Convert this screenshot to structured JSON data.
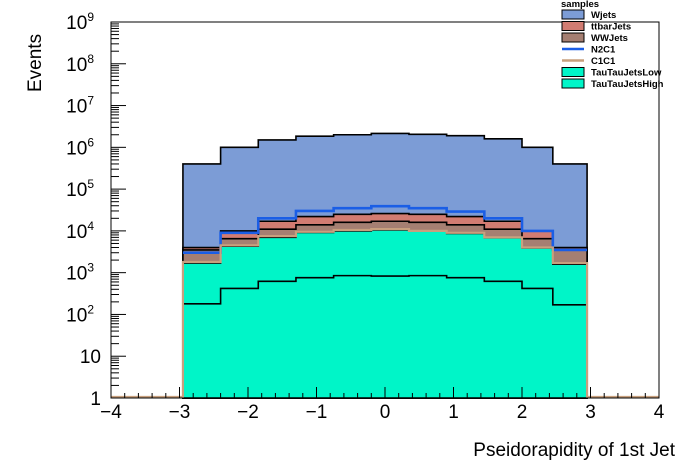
{
  "chart_data": {
    "type": "stacked-histogram",
    "xlabel": "Pseidorapidity of 1st Jet",
    "ylabel": "Events",
    "xlim": [
      -4,
      4
    ],
    "ylim": [
      1,
      1000000000
    ],
    "yscale": "log",
    "x_ticks": [
      "−4",
      "−3",
      "−2",
      "−1",
      "0",
      "1",
      "2",
      "3",
      "4"
    ],
    "y_ticks": [
      {
        "base": "1",
        "exp": ""
      },
      {
        "base": "10",
        "exp": ""
      },
      {
        "base": "10",
        "exp": "2"
      },
      {
        "base": "10",
        "exp": "3"
      },
      {
        "base": "10",
        "exp": "4"
      },
      {
        "base": "10",
        "exp": "5"
      },
      {
        "base": "10",
        "exp": "6"
      },
      {
        "base": "10",
        "exp": "7"
      },
      {
        "base": "10",
        "exp": "8"
      },
      {
        "base": "10",
        "exp": "9"
      }
    ],
    "bin_edges": [
      -2.95,
      -2.4,
      -1.85,
      -1.3,
      -0.75,
      -0.2,
      0.35,
      0.9,
      1.45,
      2.0,
      2.45,
      2.95
    ],
    "legend": {
      "title": "samples",
      "position": "top-right"
    },
    "series": [
      {
        "name": "Wjets",
        "style": "fill",
        "color": "#7c9cd6",
        "values": [
          400000,
          1000000,
          1500000,
          1850000,
          2000000,
          2150000,
          2050000,
          1900000,
          1600000,
          1000000,
          400000
        ]
      },
      {
        "name": "ttbarJets",
        "style": "fill",
        "color": "#d27c72",
        "values": [
          4000,
          10000,
          17000,
          22000,
          25000,
          26000,
          25000,
          22000,
          17000,
          10000,
          4000
        ]
      },
      {
        "name": "WWJets",
        "style": "fill",
        "color": "#a57f72",
        "values": [
          3500,
          6500,
          11000,
          14000,
          16000,
          17000,
          16000,
          14000,
          11000,
          6500,
          3500
        ]
      },
      {
        "name": "N2C1",
        "style": "line",
        "color": "#1a5ee6",
        "values": [
          3000,
          9000,
          20000,
          30000,
          35000,
          39000,
          35000,
          29000,
          20000,
          10000,
          3500
        ]
      },
      {
        "name": "C1C1",
        "style": "line",
        "color": "#c8a07e",
        "values": [
          1800,
          4500,
          7500,
          9500,
          10500,
          11000,
          10000,
          9000,
          7000,
          4000,
          1700
        ]
      },
      {
        "name": "TauTauJetsLow",
        "style": "fill",
        "color": "#00f5c8",
        "values": [
          1700,
          4300,
          7000,
          9200,
          10000,
          10500,
          9800,
          8700,
          6800,
          3900,
          1600
        ]
      },
      {
        "name": "TauTauJetsHigh",
        "style": "fill",
        "color": "#00f5c8",
        "values": [
          180,
          420,
          620,
          760,
          850,
          830,
          850,
          760,
          620,
          420,
          170
        ]
      }
    ]
  }
}
